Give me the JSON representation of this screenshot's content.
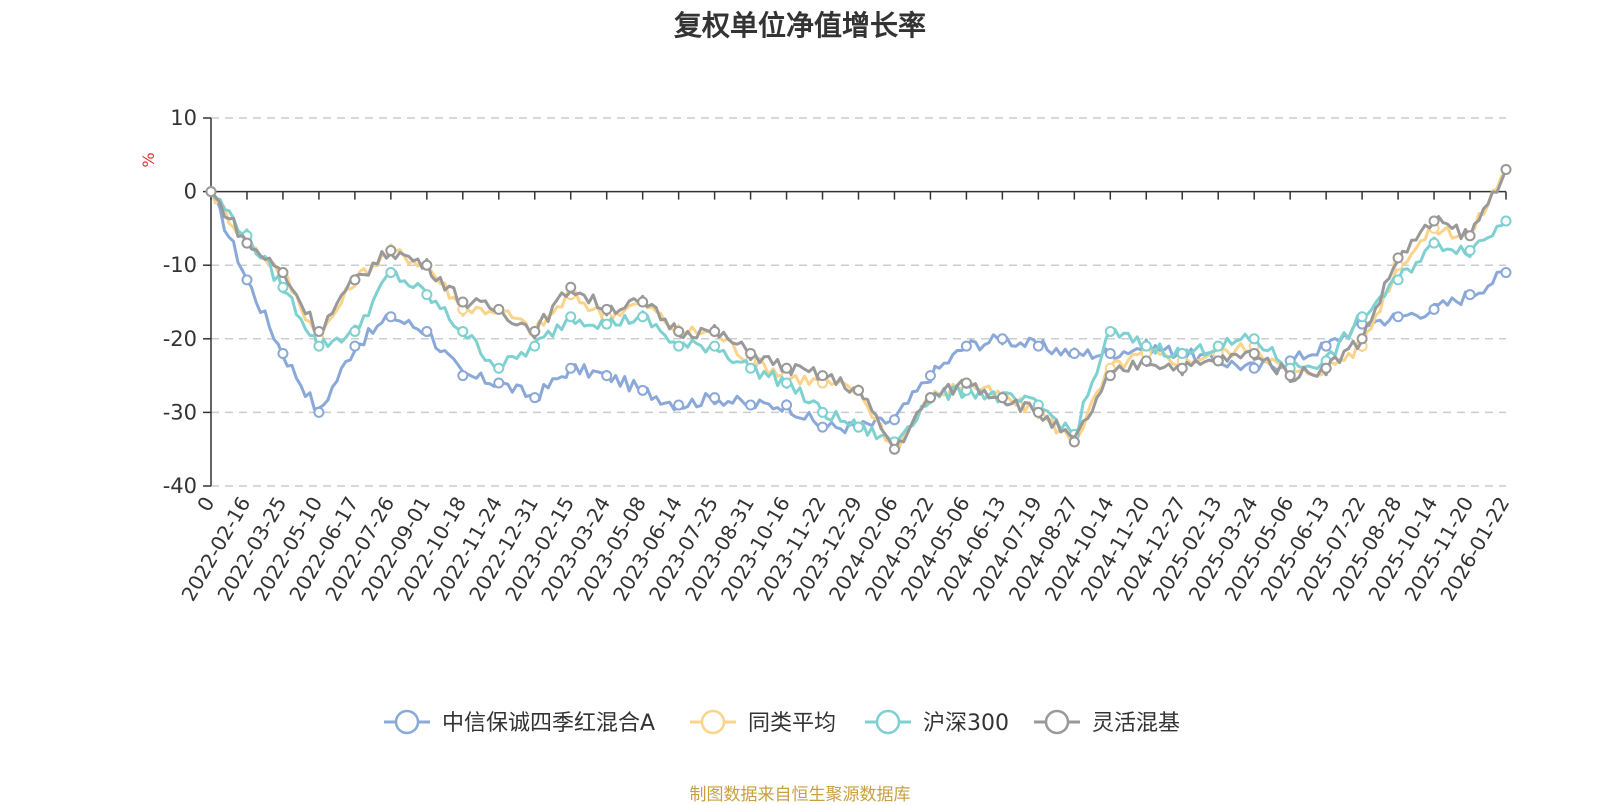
{
  "chart_data": {
    "type": "line",
    "title": "复权单位净值增长率",
    "ylabel": "%",
    "ylim": [
      -40,
      10
    ],
    "yticks": [
      10,
      0,
      -10,
      -20,
      -30,
      -40
    ],
    "grid": true,
    "legend_position": "bottom",
    "x": [
      "0",
      "2022-02-16",
      "2022-03-25",
      "2022-05-10",
      "2022-06-17",
      "2022-07-26",
      "2022-09-01",
      "2022-10-18",
      "2022-11-24",
      "2022-12-31",
      "2023-02-15",
      "2023-03-24",
      "2023-05-08",
      "2023-06-14",
      "2023-07-25",
      "2023-08-31",
      "2023-10-16",
      "2023-11-22",
      "2023-12-29",
      "2024-02-06",
      "2024-03-22",
      "2024-05-06",
      "2024-06-13",
      "2024-07-19",
      "2024-08-27",
      "2024-10-14",
      "2024-11-20",
      "2024-12-27",
      "2025-02-13",
      "2025-03-24",
      "2025-05-06",
      "2025-06-13",
      "2025-07-22",
      "2025-08-28",
      "2025-10-14",
      "2025-11-20",
      "2026-01-22"
    ],
    "series": [
      {
        "name": "中信保诚四季红混合A",
        "color": "#8aa8d8",
        "values": [
          0,
          -12,
          -22,
          -30,
          -21,
          -17,
          -19,
          -25,
          -26,
          -28,
          -24,
          -25,
          -27,
          -29,
          -28,
          -29,
          -29,
          -32,
          -32,
          -31,
          -25,
          -21,
          -20,
          -21,
          -22,
          -22,
          -21,
          -22,
          -23,
          -24,
          -23,
          -21,
          -18,
          -17,
          -16,
          -14,
          -11
        ]
      },
      {
        "name": "同类平均",
        "color": "#fbd38a",
        "values": [
          0,
          -7,
          -11,
          -20,
          -12,
          -8,
          -10,
          -16,
          -16,
          -19,
          -14,
          -17,
          -15,
          -19,
          -19,
          -23,
          -25,
          -26,
          -27,
          -35,
          -28,
          -26,
          -28,
          -30,
          -34,
          -24,
          -22,
          -23,
          -22,
          -21,
          -25,
          -24,
          -21,
          -10,
          -5,
          -6,
          3
        ]
      },
      {
        "name": "沪深300",
        "color": "#7fd1d1",
        "values": [
          0,
          -6,
          -13,
          -21,
          -19,
          -11,
          -14,
          -19,
          -24,
          -21,
          -17,
          -18,
          -17,
          -21,
          -21,
          -24,
          -26,
          -30,
          -32,
          -34,
          -28,
          -27,
          -28,
          -29,
          -33,
          -19,
          -21,
          -22,
          -21,
          -20,
          -24,
          -23,
          -17,
          -12,
          -7,
          -8,
          -4
        ]
      },
      {
        "name": "灵活混基",
        "color": "#999999",
        "values": [
          0,
          -7,
          -11,
          -19,
          -12,
          -8,
          -10,
          -15,
          -16,
          -19,
          -13,
          -16,
          -15,
          -19,
          -19,
          -22,
          -24,
          -25,
          -27,
          -35,
          -28,
          -26,
          -28,
          -30,
          -34,
          -25,
          -23,
          -24,
          -23,
          -22,
          -25,
          -24,
          -20,
          -9,
          -4,
          -6,
          3
        ]
      }
    ]
  },
  "source_text": "制图数据来自恒生聚源数据库"
}
